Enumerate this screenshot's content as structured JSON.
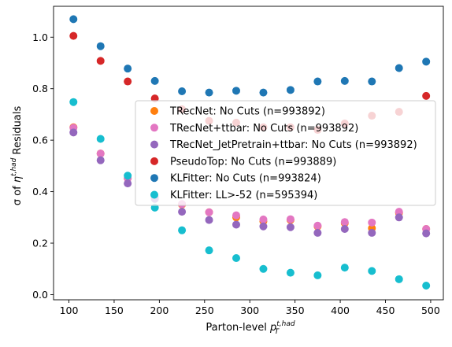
{
  "chart_data": {
    "type": "scatter",
    "title": "",
    "xlabel": "Parton-level p_T^{t,had}",
    "ylabel": "σ of η^{t,had} Residuals",
    "xlim": [
      83,
      514
    ],
    "ylim": [
      -0.02,
      1.12
    ],
    "xticks": [
      "100",
      "150",
      "200",
      "250",
      "300",
      "350",
      "400",
      "450",
      "500"
    ],
    "xtick_values": [
      100,
      150,
      200,
      250,
      300,
      350,
      400,
      450,
      500
    ],
    "yticks": [
      "0.0",
      "0.2",
      "0.4",
      "0.6",
      "0.8",
      "1.0"
    ],
    "ytick_values": [
      0.0,
      0.2,
      0.4,
      0.6,
      0.8,
      1.0
    ],
    "grid": false,
    "legend_position": "center-right",
    "x": [
      105,
      135,
      165,
      195,
      225,
      255,
      285,
      315,
      345,
      375,
      405,
      435,
      465,
      495
    ],
    "series": [
      {
        "name": "TRecNet: No Cuts (n=993892)",
        "color": "#ff7f0e",
        "values": [
          0.65,
          0.548,
          0.452,
          0.378,
          0.35,
          0.32,
          0.3,
          0.285,
          0.29,
          0.265,
          0.278,
          0.258,
          0.318,
          0.255
        ]
      },
      {
        "name": "TRecNet+ttbar: No Cuts (n=993892)",
        "color": "#e377c2",
        "values": [
          0.648,
          0.548,
          0.452,
          0.378,
          0.352,
          0.32,
          0.308,
          0.292,
          0.293,
          0.268,
          0.282,
          0.28,
          0.322,
          0.255
        ]
      },
      {
        "name": "TRecNet_JetPretrain+ttbar: No Cuts (n=993892)",
        "color": "#9467bd",
        "values": [
          0.63,
          0.522,
          0.432,
          0.372,
          0.322,
          0.29,
          0.272,
          0.265,
          0.262,
          0.24,
          0.255,
          0.24,
          0.3,
          0.238
        ]
      },
      {
        "name": "PseudoTop: No Cuts (n=993889)",
        "color": "#d62728",
        "values": [
          1.005,
          0.908,
          0.828,
          0.762,
          0.72,
          0.675,
          0.668,
          0.65,
          0.65,
          0.64,
          0.665,
          0.695,
          0.71,
          0.772
        ]
      },
      {
        "name": "KLFitter: No Cuts (n=993824)",
        "color": "#1f77b4",
        "values": [
          1.07,
          0.965,
          0.878,
          0.83,
          0.79,
          0.785,
          0.792,
          0.785,
          0.795,
          0.828,
          0.83,
          0.828,
          0.88,
          0.905
        ]
      },
      {
        "name": "KLFitter: LL>-52 (n=595394)",
        "color": "#17becf",
        "values": [
          0.748,
          0.605,
          0.462,
          0.338,
          0.25,
          0.172,
          0.142,
          0.1,
          0.085,
          0.075,
          0.105,
          0.092,
          0.06,
          0.035
        ]
      }
    ]
  }
}
